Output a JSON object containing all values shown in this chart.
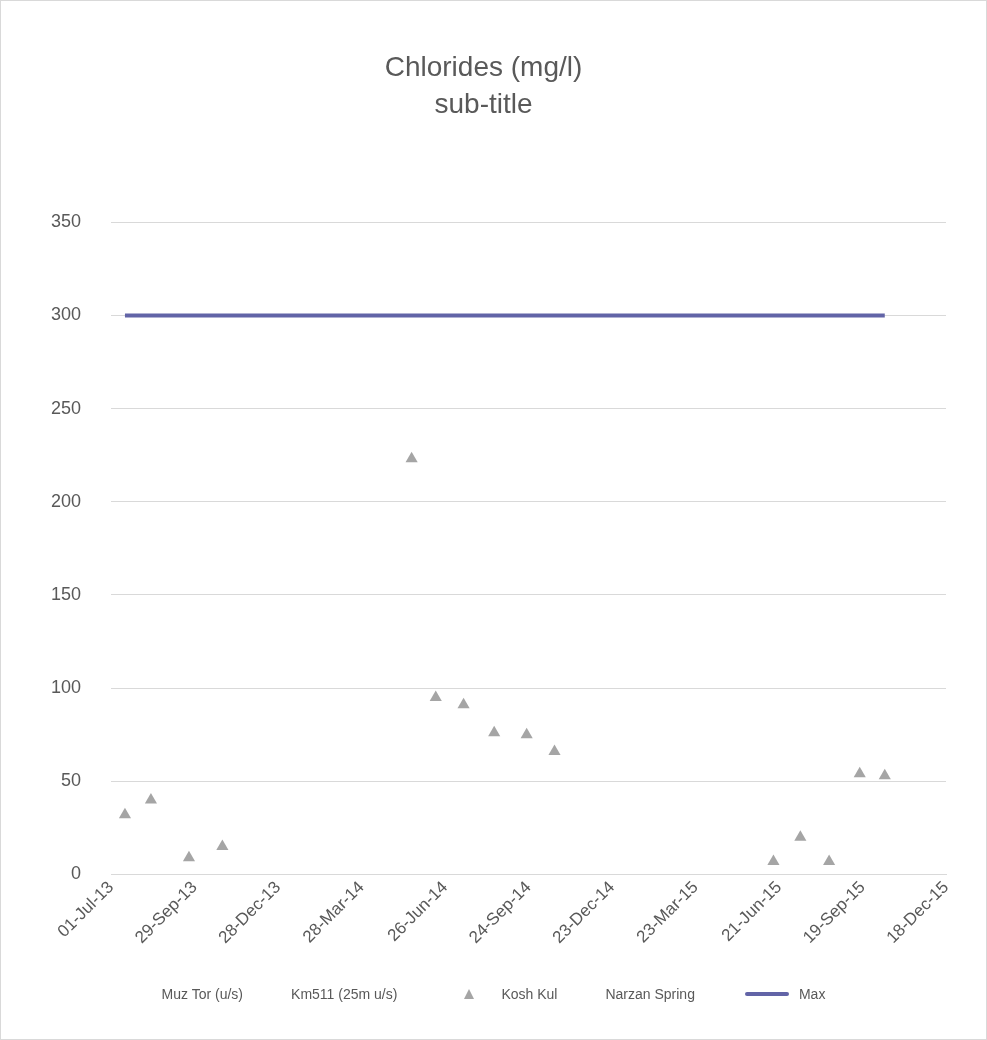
{
  "chart_data": {
    "type": "scatter",
    "title": "Chlorides (mg/l)",
    "subtitle": "sub-title",
    "xlim": [
      "2013-07-01",
      "2015-12-18"
    ],
    "xticks": [
      {
        "value": "2013-07-01",
        "label": "01-Jul-13"
      },
      {
        "value": "2013-09-29",
        "label": "29-Sep-13"
      },
      {
        "value": "2013-12-28",
        "label": "28-Dec-13"
      },
      {
        "value": "2014-03-28",
        "label": "28-Mar-14"
      },
      {
        "value": "2014-06-26",
        "label": "26-Jun-14"
      },
      {
        "value": "2014-09-24",
        "label": "24-Sep-14"
      },
      {
        "value": "2014-12-23",
        "label": "23-Dec-14"
      },
      {
        "value": "2015-03-23",
        "label": "23-Mar-15"
      },
      {
        "value": "2015-06-21",
        "label": "21-Jun-15"
      },
      {
        "value": "2015-09-19",
        "label": "19-Sep-15"
      },
      {
        "value": "2015-12-18",
        "label": "18-Dec-15"
      }
    ],
    "ylim": [
      0,
      350
    ],
    "yticks": [
      0,
      50,
      100,
      150,
      200,
      250,
      300,
      350
    ],
    "grid": "y",
    "legend": "bottom",
    "series": [
      {
        "name": "Muz Tor (u/s)"
      },
      {
        "name": "Km511 (25m u/s)"
      },
      {
        "name": "Kosh Kul",
        "marker": "triangle",
        "color": "#a5a5a5",
        "x": [
          "2013-07-16",
          "2013-08-13",
          "2013-09-23",
          "2013-10-29",
          "2014-05-21",
          "2014-06-16",
          "2014-07-16",
          "2014-08-18",
          "2014-09-22",
          "2014-10-22",
          "2015-06-15",
          "2015-07-14",
          "2015-08-14",
          "2015-09-16",
          "2015-10-13"
        ],
        "values": [
          32,
          40,
          9,
          15,
          223,
          95,
          91,
          76,
          75,
          66,
          7,
          20,
          7,
          54,
          53
        ]
      },
      {
        "name": "Narzan Spring"
      },
      {
        "name": "Max",
        "type": "line",
        "marker": "none",
        "color": "#6264a7",
        "x": [
          "2013-07-16",
          "2015-10-13"
        ],
        "values": [
          300,
          300
        ]
      }
    ]
  }
}
